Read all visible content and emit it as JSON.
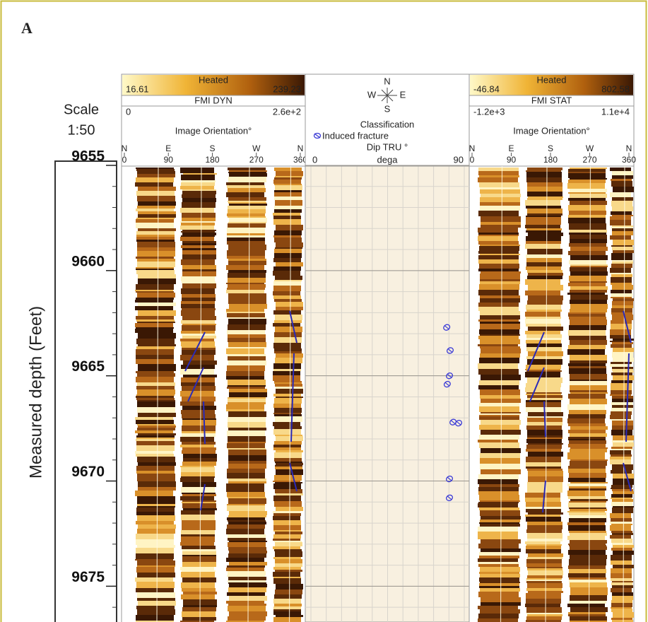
{
  "panel_label": "A",
  "depth_track": {
    "axis_title": "Measured depth (Feet)",
    "scale_label": "Scale",
    "scale": "1:50",
    "ylim": [
      9654.8,
      9676.7
    ],
    "yticks": [
      9655,
      9660,
      9665,
      9670,
      9675
    ]
  },
  "image_tracks": [
    {
      "colorbar_title": "Heated",
      "min": 16.61,
      "max": 239.23,
      "name": "FMI DYN",
      "range_min": 0,
      "range_max": {
        "value": 260,
        "label": "2.6e+2"
      },
      "axis_title": "Image Orientation°",
      "directions": [
        "N",
        "E",
        "S",
        "W",
        "N"
      ],
      "xticks": [
        0,
        90,
        180,
        270,
        360
      ]
    },
    {
      "colorbar_title": "Heated",
      "min": -46.84,
      "max": 802.58,
      "name": "FMI STAT",
      "range_min": {
        "value": -1200,
        "label": "-1.2e+3"
      },
      "range_max": {
        "value": 11000,
        "label": "1.1e+4"
      },
      "axis_title": "Image Orientation°",
      "directions": [
        "N",
        "E",
        "S",
        "W",
        "N"
      ],
      "xticks": [
        0,
        90,
        180,
        270,
        360
      ]
    }
  ],
  "dip_track": {
    "compass": [
      "N",
      "W",
      "E",
      "S"
    ],
    "classification_title": "Classification",
    "legend": "Induced fracture",
    "axis_title": "Dip TRU °",
    "unit": "dega",
    "xlim": [
      0,
      90
    ],
    "points": {
      "depth": [
        9662.7,
        9663.8,
        9665.0,
        9665.4,
        9667.2,
        9667.25,
        9669.9,
        9670.8
      ],
      "dip": [
        79.7,
        81.7,
        81.3,
        80.0,
        83.4,
        86.7,
        81.3,
        81.3
      ]
    }
  }
}
